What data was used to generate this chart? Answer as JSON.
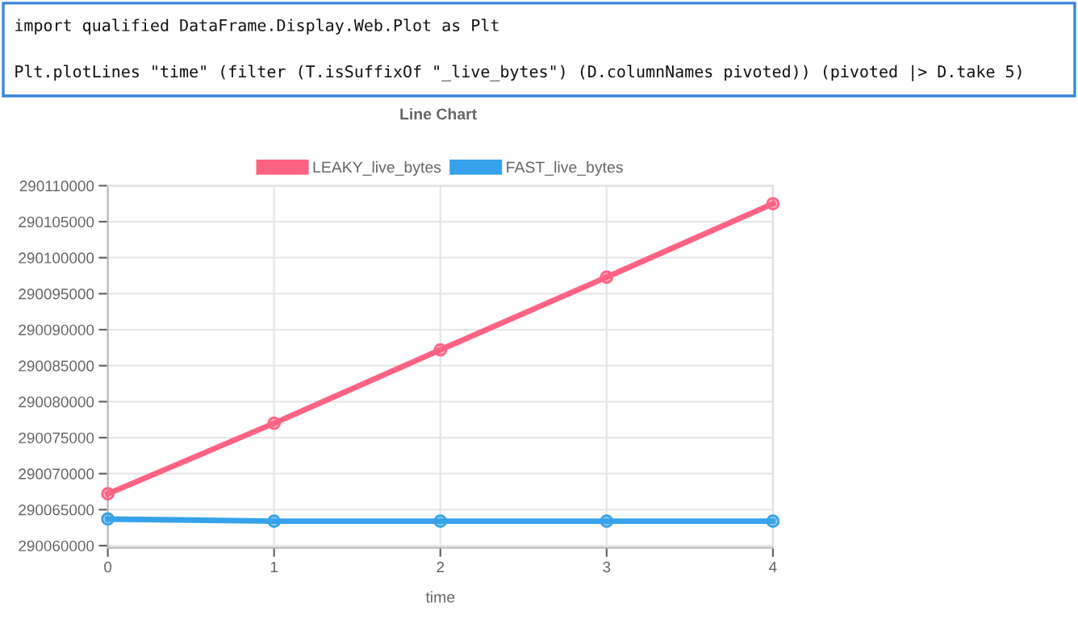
{
  "chart_data": {
    "type": "line",
    "title": "Line Chart",
    "xlabel": "time",
    "annotations": [
      "import qualified DataFrame.Display.Web.Plot as Plt",
      "Plt.plotLines \"time\" (filter (T.isSuffixOf \"_live_bytes\") (D.columnNames pivoted)) (pivoted |> D.take 5)"
    ],
    "x": [
      0,
      1,
      2,
      3,
      4
    ],
    "series": [
      {
        "name": "LEAKY_live_bytes",
        "color": "#ff6384",
        "values": [
          290067200,
          290077000,
          290087200,
          290097300,
          290107500
        ]
      },
      {
        "name": "FAST_live_bytes",
        "color": "#36a2eb",
        "values": [
          290063700,
          290063400,
          290063400,
          290063400,
          290063400
        ]
      }
    ],
    "xlim": [
      0,
      4
    ],
    "xticks": [
      0,
      1,
      2,
      3,
      4
    ],
    "ylim": [
      290059700,
      290110000
    ],
    "yticks": [
      290060000,
      290065000,
      290070000,
      290075000,
      290080000,
      290085000,
      290090000,
      290095000,
      290100000,
      290105000,
      290110000
    ],
    "grid": true,
    "legend": "top",
    "marker": "circle",
    "line_style": "solid"
  }
}
